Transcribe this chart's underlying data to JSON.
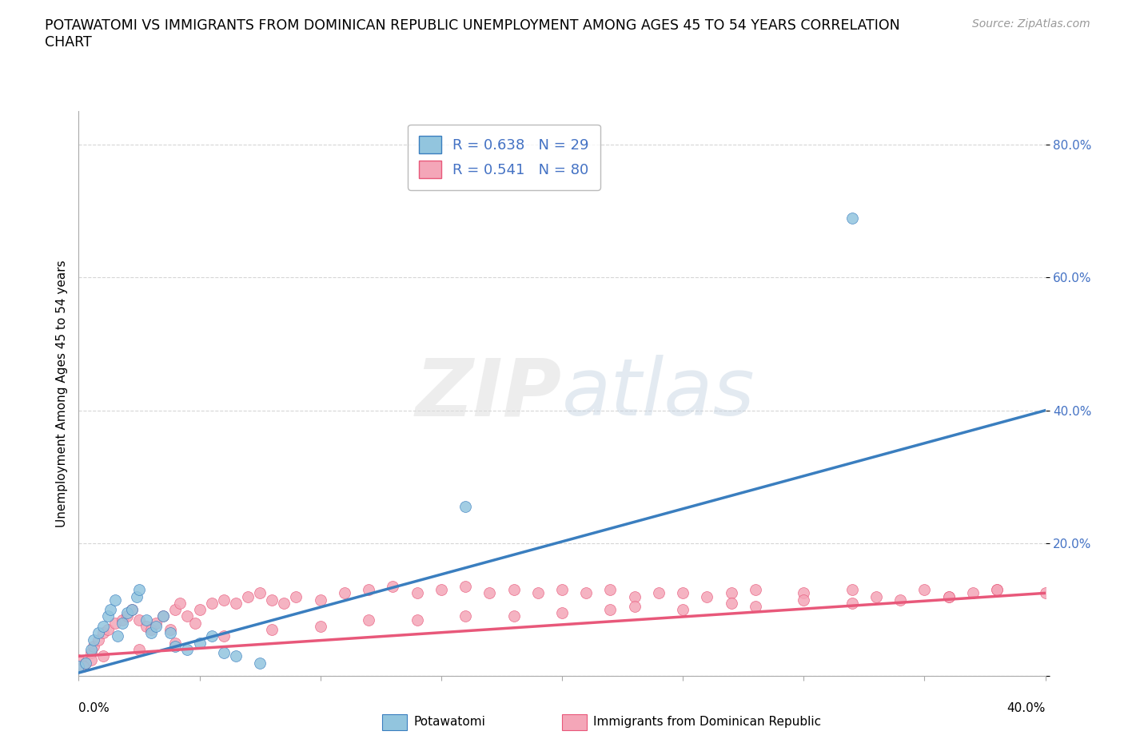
{
  "title_line1": "POTAWATOMI VS IMMIGRANTS FROM DOMINICAN REPUBLIC UNEMPLOYMENT AMONG AGES 45 TO 54 YEARS CORRELATION",
  "title_line2": "CHART",
  "source": "Source: ZipAtlas.com",
  "ylabel": "Unemployment Among Ages 45 to 54 years",
  "xlim": [
    0.0,
    0.4
  ],
  "ylim": [
    0.0,
    0.85
  ],
  "yticks": [
    0.0,
    0.2,
    0.4,
    0.6,
    0.8
  ],
  "ytick_labels": [
    "",
    "20.0%",
    "40.0%",
    "60.0%",
    "80.0%"
  ],
  "xtick_labels": [
    "0.0%",
    "40.0%"
  ],
  "legend_blue_r": "R = 0.638",
  "legend_blue_n": "N = 29",
  "legend_pink_r": "R = 0.541",
  "legend_pink_n": "N = 80",
  "blue_scatter_color": "#92C5DE",
  "pink_scatter_color": "#F4A6B8",
  "blue_line_color": "#3A7EBF",
  "pink_line_color": "#E8587A",
  "watermark_zip": "ZIP",
  "watermark_atlas": "atlas",
  "blue_scatter_x": [
    0.0,
    0.003,
    0.005,
    0.006,
    0.008,
    0.01,
    0.012,
    0.013,
    0.015,
    0.016,
    0.018,
    0.02,
    0.022,
    0.024,
    0.025,
    0.028,
    0.03,
    0.032,
    0.035,
    0.038,
    0.04,
    0.045,
    0.05,
    0.055,
    0.06,
    0.065,
    0.075,
    0.16,
    0.32
  ],
  "blue_scatter_y": [
    0.015,
    0.02,
    0.04,
    0.055,
    0.065,
    0.075,
    0.09,
    0.1,
    0.115,
    0.06,
    0.08,
    0.095,
    0.1,
    0.12,
    0.13,
    0.085,
    0.065,
    0.075,
    0.09,
    0.065,
    0.045,
    0.04,
    0.05,
    0.06,
    0.035,
    0.03,
    0.02,
    0.255,
    0.69
  ],
  "pink_scatter_x": [
    0.0,
    0.003,
    0.005,
    0.006,
    0.008,
    0.01,
    0.012,
    0.015,
    0.018,
    0.02,
    0.022,
    0.025,
    0.028,
    0.03,
    0.032,
    0.035,
    0.038,
    0.04,
    0.042,
    0.045,
    0.048,
    0.05,
    0.055,
    0.06,
    0.065,
    0.07,
    0.075,
    0.08,
    0.085,
    0.09,
    0.1,
    0.11,
    0.12,
    0.13,
    0.14,
    0.15,
    0.16,
    0.17,
    0.18,
    0.19,
    0.2,
    0.21,
    0.22,
    0.23,
    0.24,
    0.25,
    0.26,
    0.27,
    0.28,
    0.3,
    0.32,
    0.33,
    0.35,
    0.36,
    0.38,
    0.4,
    0.38,
    0.37,
    0.36,
    0.34,
    0.32,
    0.3,
    0.28,
    0.27,
    0.25,
    0.23,
    0.22,
    0.2,
    0.18,
    0.16,
    0.14,
    0.12,
    0.1,
    0.08,
    0.06,
    0.04,
    0.025,
    0.01,
    0.005,
    0.002
  ],
  "pink_scatter_y": [
    0.025,
    0.02,
    0.035,
    0.045,
    0.055,
    0.065,
    0.07,
    0.08,
    0.085,
    0.09,
    0.1,
    0.085,
    0.075,
    0.07,
    0.08,
    0.09,
    0.07,
    0.1,
    0.11,
    0.09,
    0.08,
    0.1,
    0.11,
    0.115,
    0.11,
    0.12,
    0.125,
    0.115,
    0.11,
    0.12,
    0.115,
    0.125,
    0.13,
    0.135,
    0.125,
    0.13,
    0.135,
    0.125,
    0.13,
    0.125,
    0.13,
    0.125,
    0.13,
    0.12,
    0.125,
    0.125,
    0.12,
    0.125,
    0.13,
    0.125,
    0.13,
    0.12,
    0.13,
    0.12,
    0.13,
    0.125,
    0.13,
    0.125,
    0.12,
    0.115,
    0.11,
    0.115,
    0.105,
    0.11,
    0.1,
    0.105,
    0.1,
    0.095,
    0.09,
    0.09,
    0.085,
    0.085,
    0.075,
    0.07,
    0.06,
    0.05,
    0.04,
    0.03,
    0.025,
    0.015
  ],
  "blue_line_x": [
    0.0,
    0.4
  ],
  "blue_line_y": [
    0.005,
    0.4
  ],
  "pink_line_x": [
    0.0,
    0.4
  ],
  "pink_line_y": [
    0.03,
    0.125
  ],
  "background_color": "#ffffff",
  "grid_color": "#cccccc",
  "title_fontsize": 12.5,
  "label_fontsize": 11,
  "tick_fontsize": 11,
  "source_fontsize": 10
}
